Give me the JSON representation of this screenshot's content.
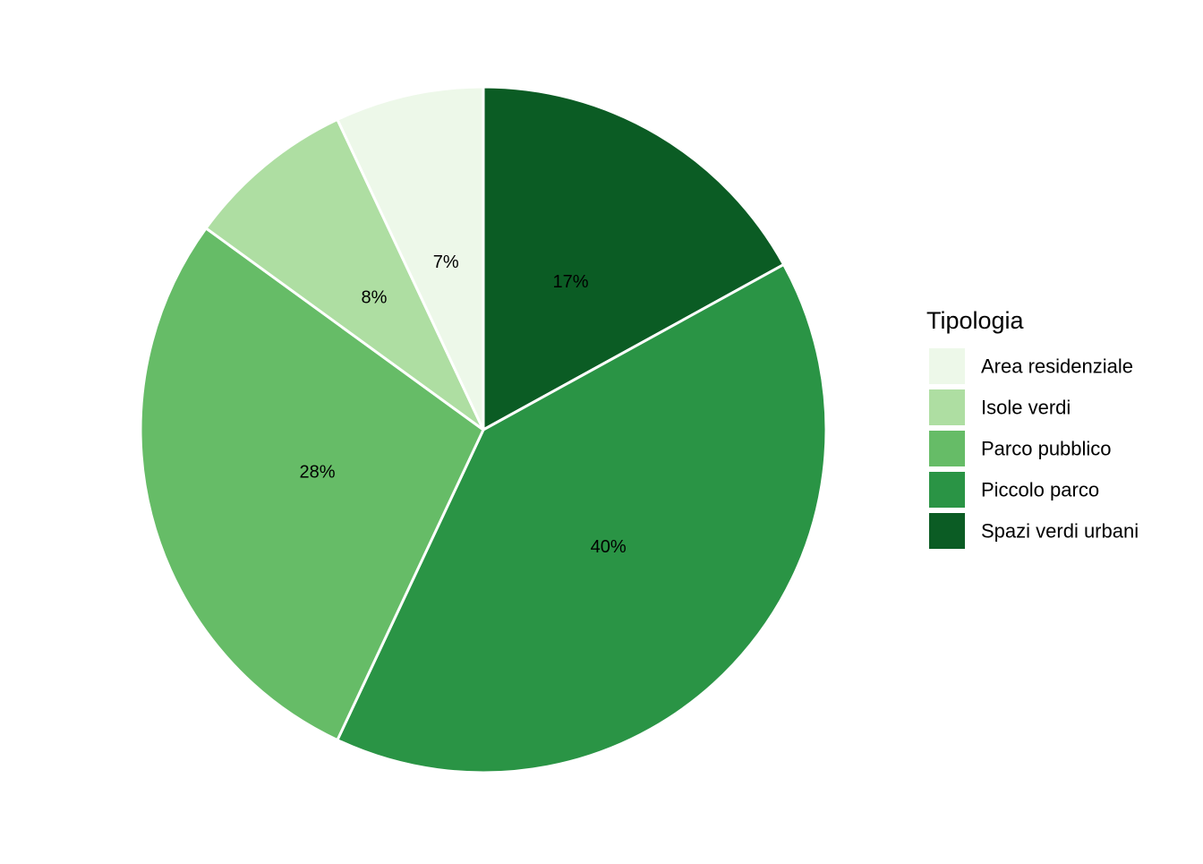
{
  "chart_data": {
    "type": "pie",
    "title": "",
    "legend": {
      "title": "Tipologia",
      "position": "right"
    },
    "categories": [
      "Area residenziale",
      "Isole verdi",
      "Parco pubblico",
      "Piccolo parco",
      "Spazi verdi urbani"
    ],
    "values": [
      7,
      8,
      28,
      40,
      17
    ],
    "labels": [
      "7%",
      "8%",
      "28%",
      "40%",
      "17%"
    ],
    "colors": [
      "#edf8e9",
      "#aedea2",
      "#66bc67",
      "#2a9445",
      "#0b5c24"
    ],
    "slice_order_clockwise_from_top": [
      "Spazi verdi urbani",
      "Piccolo parco",
      "Parco pubblico",
      "Isole verdi",
      "Area residenziale"
    ],
    "start_angle": "12 o'clock",
    "direction": "clockwise"
  }
}
